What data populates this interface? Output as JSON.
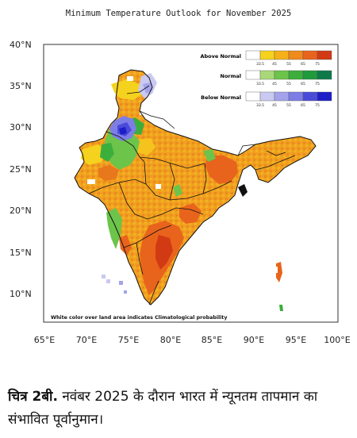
{
  "title": "Minimum Temperature Outlook for November 2025",
  "axes": {
    "lat_labels": [
      "40°N",
      "35°N",
      "30°N",
      "25°N",
      "20°N",
      "15°N",
      "10°N"
    ],
    "lon_labels": [
      "65°E",
      "70°E",
      "75°E",
      "80°E",
      "85°E",
      "90°E",
      "95°E",
      "100°E"
    ]
  },
  "legend": {
    "rows": [
      {
        "label": "Above Normal",
        "ticks": [
          "33.5",
          "45",
          "55",
          "65",
          "75"
        ],
        "colors": [
          "#ffffff",
          "#f5d21e",
          "#f5b01a",
          "#ef8a1c",
          "#e8641c",
          "#d23a14"
        ]
      },
      {
        "label": "Normal",
        "ticks": [
          "33.5",
          "45",
          "55",
          "65",
          "75"
        ],
        "colors": [
          "#ffffff",
          "#a8d878",
          "#6cc44a",
          "#3cae3c",
          "#1f9a3c",
          "#0e7a4a"
        ]
      },
      {
        "label": "Below Normal",
        "ticks": [
          "33.5",
          "45",
          "55",
          "65",
          "75"
        ],
        "colors": [
          "#ffffff",
          "#c9c9f2",
          "#a3a3ec",
          "#7d7de6",
          "#4a4ad9",
          "#1e1ec8"
        ]
      }
    ]
  },
  "note": "White color over land area indicates Climatological probability",
  "caption": {
    "figure": "चित्र 2बी.",
    "text": "नवंबर 2025 के दौरान भारत में न्यूनतम तापमान का संभावित पूर्वानुमान।"
  }
}
